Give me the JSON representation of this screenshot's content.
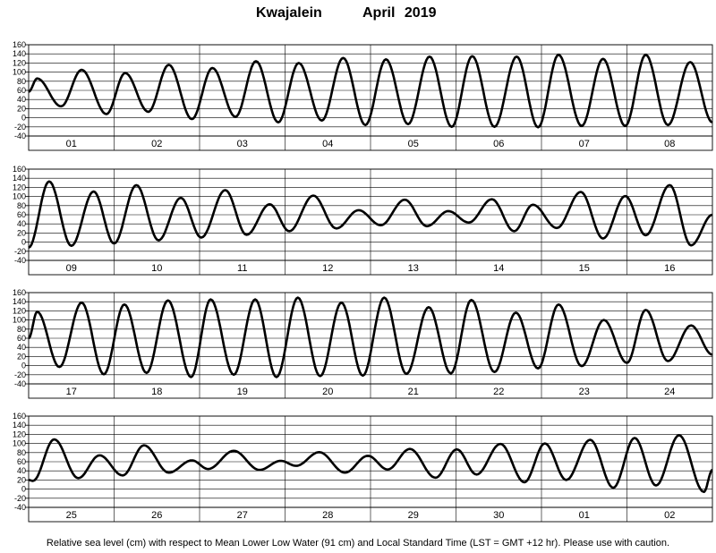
{
  "header": {
    "station": "Kwajalein",
    "month": "April 2019"
  },
  "footnote": "Relative sea level (cm) with respect to Mean Lower Low Water (91 cm) and Local Standard Time (LST = GMT +12 hr). Please use with caution.",
  "chart_data": {
    "type": "line",
    "title": "Kwajalein April 2019",
    "ylabel": "Relative sea level (cm)",
    "ylim": [
      -40,
      160
    ],
    "yticks": [
      -40,
      -20,
      0,
      20,
      40,
      60,
      80,
      100,
      120,
      140,
      160
    ],
    "grid": true,
    "days_per_row": 8,
    "rows": [
      {
        "day_labels": [
          "01",
          "02",
          "03",
          "04",
          "05",
          "06",
          "07",
          "08"
        ],
        "extrema": [
          [
            0.0,
            57
          ],
          [
            0.1,
            86
          ],
          [
            0.38,
            25
          ],
          [
            0.62,
            105
          ],
          [
            0.91,
            8
          ],
          [
            1.13,
            98
          ],
          [
            1.4,
            13
          ],
          [
            1.64,
            116
          ],
          [
            1.91,
            -3
          ],
          [
            2.15,
            109
          ],
          [
            2.42,
            2
          ],
          [
            2.66,
            124
          ],
          [
            2.92,
            -10
          ],
          [
            3.16,
            120
          ],
          [
            3.43,
            -6
          ],
          [
            3.68,
            131
          ],
          [
            3.94,
            -16
          ],
          [
            4.18,
            128
          ],
          [
            4.44,
            -14
          ],
          [
            4.69,
            134
          ],
          [
            4.95,
            -20
          ],
          [
            5.19,
            135
          ],
          [
            5.45,
            -20
          ],
          [
            5.71,
            134
          ],
          [
            5.96,
            -21
          ],
          [
            6.2,
            138
          ],
          [
            6.47,
            -18
          ],
          [
            6.72,
            129
          ],
          [
            6.98,
            -18
          ],
          [
            7.22,
            138
          ],
          [
            7.48,
            -16
          ],
          [
            7.74,
            122
          ],
          [
            8.0,
            -10
          ]
        ]
      },
      {
        "day_labels": [
          "09",
          "10",
          "11",
          "12",
          "13",
          "14",
          "15",
          "16"
        ],
        "extrema": [
          [
            0.0,
            -12
          ],
          [
            0.24,
            133
          ],
          [
            0.5,
            -8
          ],
          [
            0.76,
            111
          ],
          [
            1.0,
            -3
          ],
          [
            1.26,
            125
          ],
          [
            1.52,
            4
          ],
          [
            1.78,
            97
          ],
          [
            2.02,
            10
          ],
          [
            2.3,
            114
          ],
          [
            2.55,
            16
          ],
          [
            2.82,
            83
          ],
          [
            3.05,
            24
          ],
          [
            3.33,
            102
          ],
          [
            3.6,
            30
          ],
          [
            3.86,
            70
          ],
          [
            4.12,
            37
          ],
          [
            4.4,
            93
          ],
          [
            4.66,
            35
          ],
          [
            4.91,
            68
          ],
          [
            5.15,
            43
          ],
          [
            5.42,
            94
          ],
          [
            5.68,
            24
          ],
          [
            5.9,
            82
          ],
          [
            6.18,
            31
          ],
          [
            6.46,
            110
          ],
          [
            6.72,
            8
          ],
          [
            6.98,
            101
          ],
          [
            7.22,
            15
          ],
          [
            7.5,
            125
          ],
          [
            7.75,
            -7
          ],
          [
            8.0,
            60
          ]
        ]
      },
      {
        "day_labels": [
          "17",
          "18",
          "19",
          "20",
          "21",
          "22",
          "23",
          "24"
        ],
        "extrema": [
          [
            0.0,
            60
          ],
          [
            0.1,
            118
          ],
          [
            0.36,
            -3
          ],
          [
            0.62,
            138
          ],
          [
            0.88,
            -19
          ],
          [
            1.12,
            134
          ],
          [
            1.38,
            -16
          ],
          [
            1.63,
            143
          ],
          [
            1.9,
            -25
          ],
          [
            2.13,
            145
          ],
          [
            2.4,
            -20
          ],
          [
            2.65,
            145
          ],
          [
            2.9,
            -25
          ],
          [
            3.15,
            149
          ],
          [
            3.41,
            -23
          ],
          [
            3.66,
            138
          ],
          [
            3.91,
            -22
          ],
          [
            4.16,
            149
          ],
          [
            4.42,
            -18
          ],
          [
            4.68,
            128
          ],
          [
            4.94,
            -17
          ],
          [
            5.18,
            144
          ],
          [
            5.45,
            -14
          ],
          [
            5.7,
            116
          ],
          [
            5.96,
            -6
          ],
          [
            6.2,
            134
          ],
          [
            6.47,
            -1
          ],
          [
            6.73,
            100
          ],
          [
            7.0,
            6
          ],
          [
            7.22,
            122
          ],
          [
            7.48,
            10
          ],
          [
            7.75,
            88
          ],
          [
            8.0,
            24
          ]
        ]
      },
      {
        "day_labels": [
          "25",
          "26",
          "27",
          "28",
          "29",
          "30",
          "01",
          "02"
        ],
        "extrema": [
          [
            0.0,
            20
          ],
          [
            0.05,
            18
          ],
          [
            0.3,
            109
          ],
          [
            0.58,
            24
          ],
          [
            0.83,
            74
          ],
          [
            1.1,
            30
          ],
          [
            1.35,
            96
          ],
          [
            1.64,
            36
          ],
          [
            1.91,
            63
          ],
          [
            2.1,
            44
          ],
          [
            2.4,
            84
          ],
          [
            2.7,
            42
          ],
          [
            2.95,
            62
          ],
          [
            3.13,
            51
          ],
          [
            3.4,
            81
          ],
          [
            3.7,
            36
          ],
          [
            3.97,
            73
          ],
          [
            4.2,
            43
          ],
          [
            4.46,
            88
          ],
          [
            4.76,
            25
          ],
          [
            5.01,
            87
          ],
          [
            5.24,
            32
          ],
          [
            5.52,
            99
          ],
          [
            5.8,
            15
          ],
          [
            6.04,
            100
          ],
          [
            6.29,
            20
          ],
          [
            6.57,
            108
          ],
          [
            6.84,
            3
          ],
          [
            7.09,
            112
          ],
          [
            7.34,
            8
          ],
          [
            7.61,
            118
          ],
          [
            7.9,
            -6
          ],
          [
            8.0,
            42
          ]
        ]
      }
    ]
  }
}
